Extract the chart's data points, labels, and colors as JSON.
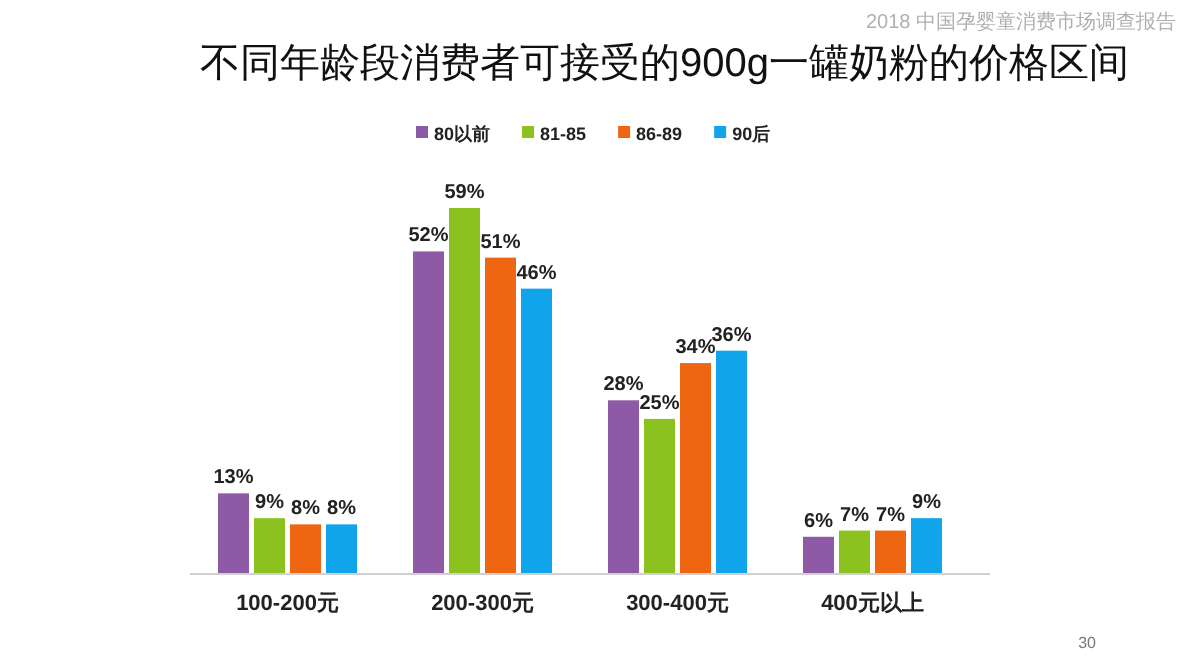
{
  "chart_data": {
    "type": "bar",
    "title": "不同年龄段消费者可接受的900g一罐奶粉的价格区间",
    "categories": [
      "100-200元",
      "200-300元",
      "300-400元",
      "400元以上"
    ],
    "series": [
      {
        "name": "80以前",
        "color": "#8e5aa5",
        "values": [
          13,
          52,
          28,
          6
        ],
        "value_labels": [
          "13%",
          "52%",
          "28%",
          "6%"
        ]
      },
      {
        "name": "81-85",
        "color": "#8cc21f",
        "values": [
          9,
          59,
          25,
          7
        ],
        "value_labels": [
          "9%",
          "59%",
          "25%",
          "7%"
        ]
      },
      {
        "name": "86-89",
        "color": "#ee6611",
        "values": [
          8,
          51,
          34,
          7
        ],
        "value_labels": [
          "8%",
          "51%",
          "34%",
          "7%"
        ]
      },
      {
        "name": "90后",
        "color": "#10a4ea",
        "values": [
          8,
          46,
          36,
          9
        ],
        "value_labels": [
          "8%",
          "46%",
          "36%",
          "9%"
        ]
      }
    ],
    "legend": "top",
    "annotations": [
      "2018 中国孕婴童消费市场调查报告",
      "30"
    ]
  }
}
